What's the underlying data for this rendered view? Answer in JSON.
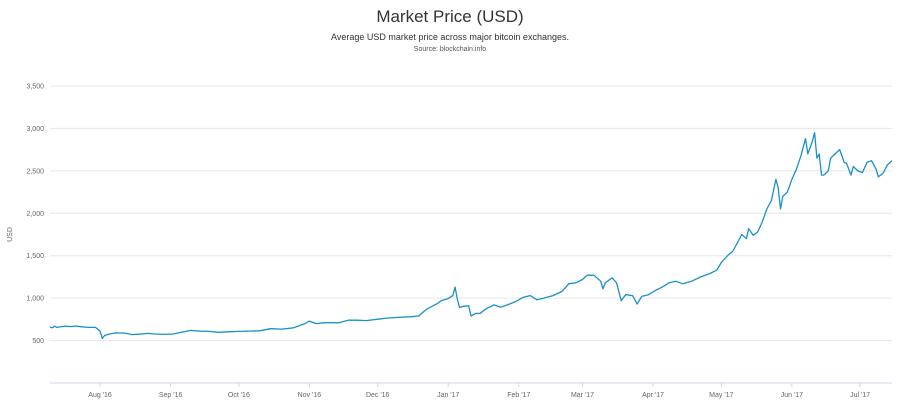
{
  "title": "Market Price (USD)",
  "subtitle": "Average USD market price across major bitcoin exchanges.",
  "source": "Source: blockchain.info",
  "chart_data": {
    "type": "line",
    "title": "Market Price (USD)",
    "xlabel": "",
    "ylabel": "USD",
    "ylim": [
      0,
      3500
    ],
    "xlim": [
      "2016-07-10",
      "2017-07-09"
    ],
    "grid": true,
    "legend": "none",
    "line_color": "#1a91c4",
    "y_ticks": [
      {
        "value": 500,
        "label": "500"
      },
      {
        "value": 1000,
        "label": "1,000"
      },
      {
        "value": 1500,
        "label": "1,500"
      },
      {
        "value": 2000,
        "label": "2,000"
      },
      {
        "value": 2500,
        "label": "2,500"
      },
      {
        "value": 3000,
        "label": "3,000"
      },
      {
        "value": 3500,
        "label": "3,500"
      }
    ],
    "x_ticks": [
      {
        "date": "2016-08-01",
        "label": "Aug '16"
      },
      {
        "date": "2016-09-01",
        "label": "Sep '16"
      },
      {
        "date": "2016-10-01",
        "label": "Oct '16"
      },
      {
        "date": "2016-11-01",
        "label": "Nov '16"
      },
      {
        "date": "2016-12-01",
        "label": "Dec '16"
      },
      {
        "date": "2017-01-01",
        "label": "Jan '17"
      },
      {
        "date": "2017-02-01",
        "label": "Feb '17"
      },
      {
        "date": "2017-03-01",
        "label": "Mar '17"
      },
      {
        "date": "2017-04-01",
        "label": "Apr '17"
      },
      {
        "date": "2017-05-01",
        "label": "May '17"
      },
      {
        "date": "2017-06-01",
        "label": "Jun '17"
      },
      {
        "date": "2017-07-01",
        "label": "Jul '17"
      }
    ],
    "points": [
      [
        "2016-07-10",
        660
      ],
      [
        "2016-07-11",
        650
      ],
      [
        "2016-07-12",
        670
      ],
      [
        "2016-07-13",
        655
      ],
      [
        "2016-07-15",
        665
      ],
      [
        "2016-07-17",
        670
      ],
      [
        "2016-07-19",
        665
      ],
      [
        "2016-07-21",
        672
      ],
      [
        "2016-07-24",
        662
      ],
      [
        "2016-07-27",
        655
      ],
      [
        "2016-07-30",
        655
      ],
      [
        "2016-08-01",
        610
      ],
      [
        "2016-08-02",
        525
      ],
      [
        "2016-08-03",
        560
      ],
      [
        "2016-08-05",
        578
      ],
      [
        "2016-08-08",
        590
      ],
      [
        "2016-08-12",
        588
      ],
      [
        "2016-08-15",
        570
      ],
      [
        "2016-08-18",
        575
      ],
      [
        "2016-08-22",
        585
      ],
      [
        "2016-08-25",
        578
      ],
      [
        "2016-08-29",
        573
      ],
      [
        "2016-09-02",
        578
      ],
      [
        "2016-09-06",
        600
      ],
      [
        "2016-09-10",
        620
      ],
      [
        "2016-09-14",
        610
      ],
      [
        "2016-09-18",
        608
      ],
      [
        "2016-09-22",
        597
      ],
      [
        "2016-09-26",
        603
      ],
      [
        "2016-10-01",
        608
      ],
      [
        "2016-10-05",
        612
      ],
      [
        "2016-10-10",
        615
      ],
      [
        "2016-10-15",
        640
      ],
      [
        "2016-10-20",
        635
      ],
      [
        "2016-10-25",
        650
      ],
      [
        "2016-10-30",
        700
      ],
      [
        "2016-11-01",
        730
      ],
      [
        "2016-11-04",
        700
      ],
      [
        "2016-11-07",
        710
      ],
      [
        "2016-11-10",
        712
      ],
      [
        "2016-11-14",
        710
      ],
      [
        "2016-11-18",
        740
      ],
      [
        "2016-11-22",
        740
      ],
      [
        "2016-11-26",
        735
      ],
      [
        "2016-12-01",
        752
      ],
      [
        "2016-12-05",
        765
      ],
      [
        "2016-12-10",
        773
      ],
      [
        "2016-12-15",
        780
      ],
      [
        "2016-12-19",
        790
      ],
      [
        "2016-12-22",
        860
      ],
      [
        "2016-12-24",
        892
      ],
      [
        "2016-12-27",
        933
      ],
      [
        "2016-12-29",
        971
      ],
      [
        "2017-01-01",
        995
      ],
      [
        "2017-01-03",
        1030
      ],
      [
        "2017-01-04",
        1130
      ],
      [
        "2017-01-05",
        990
      ],
      [
        "2017-01-06",
        890
      ],
      [
        "2017-01-07",
        900
      ],
      [
        "2017-01-08",
        905
      ],
      [
        "2017-01-10",
        910
      ],
      [
        "2017-01-11",
        790
      ],
      [
        "2017-01-13",
        820
      ],
      [
        "2017-01-15",
        820
      ],
      [
        "2017-01-18",
        880
      ],
      [
        "2017-01-21",
        920
      ],
      [
        "2017-01-24",
        895
      ],
      [
        "2017-01-27",
        920
      ],
      [
        "2017-01-31",
        965
      ],
      [
        "2017-02-03",
        1010
      ],
      [
        "2017-02-06",
        1030
      ],
      [
        "2017-02-09",
        980
      ],
      [
        "2017-02-12",
        1000
      ],
      [
        "2017-02-16",
        1030
      ],
      [
        "2017-02-20",
        1080
      ],
      [
        "2017-02-23",
        1170
      ],
      [
        "2017-02-26",
        1180
      ],
      [
        "2017-03-01",
        1220
      ],
      [
        "2017-03-03",
        1270
      ],
      [
        "2017-03-06",
        1270
      ],
      [
        "2017-03-09",
        1200
      ],
      [
        "2017-03-10",
        1110
      ],
      [
        "2017-03-11",
        1180
      ],
      [
        "2017-03-14",
        1240
      ],
      [
        "2017-03-16",
        1180
      ],
      [
        "2017-03-18",
        970
      ],
      [
        "2017-03-20",
        1040
      ],
      [
        "2017-03-23",
        1030
      ],
      [
        "2017-03-25",
        930
      ],
      [
        "2017-03-27",
        1020
      ],
      [
        "2017-03-30",
        1040
      ],
      [
        "2017-04-02",
        1090
      ],
      [
        "2017-04-05",
        1130
      ],
      [
        "2017-04-08",
        1180
      ],
      [
        "2017-04-11",
        1200
      ],
      [
        "2017-04-14",
        1170
      ],
      [
        "2017-04-18",
        1200
      ],
      [
        "2017-04-22",
        1250
      ],
      [
        "2017-04-26",
        1290
      ],
      [
        "2017-04-29",
        1330
      ],
      [
        "2017-05-01",
        1420
      ],
      [
        "2017-05-04",
        1510
      ],
      [
        "2017-05-06",
        1550
      ],
      [
        "2017-05-08",
        1650
      ],
      [
        "2017-05-10",
        1750
      ],
      [
        "2017-05-12",
        1700
      ],
      [
        "2017-05-13",
        1820
      ],
      [
        "2017-05-15",
        1740
      ],
      [
        "2017-05-17",
        1780
      ],
      [
        "2017-05-19",
        1900
      ],
      [
        "2017-05-21",
        2050
      ],
      [
        "2017-05-23",
        2150
      ],
      [
        "2017-05-25",
        2400
      ],
      [
        "2017-05-26",
        2300
      ],
      [
        "2017-05-27",
        2050
      ],
      [
        "2017-05-28",
        2200
      ],
      [
        "2017-05-30",
        2250
      ],
      [
        "2017-06-01",
        2400
      ],
      [
        "2017-06-03",
        2520
      ],
      [
        "2017-06-05",
        2680
      ],
      [
        "2017-06-07",
        2880
      ],
      [
        "2017-06-08",
        2700
      ],
      [
        "2017-06-10",
        2850
      ],
      [
        "2017-06-11",
        2950
      ],
      [
        "2017-06-12",
        2650
      ],
      [
        "2017-06-13",
        2700
      ],
      [
        "2017-06-14",
        2450
      ],
      [
        "2017-06-15",
        2450
      ],
      [
        "2017-06-17",
        2500
      ],
      [
        "2017-06-18",
        2650
      ],
      [
        "2017-06-20",
        2700
      ],
      [
        "2017-06-22",
        2750
      ],
      [
        "2017-06-24",
        2600
      ],
      [
        "2017-06-25",
        2590
      ],
      [
        "2017-06-27",
        2450
      ],
      [
        "2017-06-28",
        2550
      ],
      [
        "2017-06-30",
        2500
      ],
      [
        "2017-07-02",
        2480
      ],
      [
        "2017-07-04",
        2600
      ],
      [
        "2017-07-06",
        2620
      ],
      [
        "2017-07-08",
        2520
      ],
      [
        "2017-07-09",
        2430
      ],
      [
        "2017-07-11",
        2470
      ],
      [
        "2017-07-13",
        2570
      ],
      [
        "2017-07-15",
        2620
      ]
    ]
  }
}
